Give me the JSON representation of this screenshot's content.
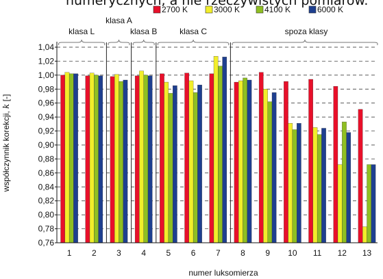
{
  "caption_fragment": "numerycznych, a nie rzeczywistych pomiarów.",
  "chart_data": {
    "type": "bar",
    "title": "",
    "xlabel": "numer luksomierza",
    "ylabel": "współczynnik korekcji, k [-]",
    "ylabel_main": "współczynnik korekcji,",
    "ylabel_var": "k",
    "ylabel_unit": "[-]",
    "ylim": [
      0.76,
      1.04
    ],
    "yticks": [
      "0,76",
      "0,78",
      "0,80",
      "0,82",
      "0,84",
      "0,86",
      "0,88",
      "0,90",
      "0,92",
      "0,94",
      "0,96",
      "0,98",
      "1,00",
      "1,02",
      "1,04"
    ],
    "grid": "horizontal dashed",
    "legend_position": "top",
    "categories": [
      "1",
      "2",
      "3",
      "4",
      "5",
      "6",
      "7",
      "8",
      "9",
      "10",
      "11",
      "12",
      "13"
    ],
    "series": [
      {
        "name": "2700 K",
        "color": "#e8102a",
        "values": [
          1.0,
          0.999,
          0.998,
          0.999,
          1.002,
          1.003,
          1.002,
          0.99,
          1.004,
          0.991,
          0.994,
          0.984,
          0.951
        ]
      },
      {
        "name": "3000 K",
        "color": "#f2ee2a",
        "values": [
          1.004,
          1.003,
          1.001,
          1.006,
          0.99,
          0.992,
          1.027,
          0.992,
          0.98,
          0.931,
          0.925,
          0.872,
          0.783
        ]
      },
      {
        "name": "4100 K",
        "color": "#8fbf22",
        "values": [
          1.002,
          1.0,
          0.991,
          1.0,
          0.974,
          0.975,
          1.013,
          0.996,
          0.962,
          0.922,
          0.915,
          0.933,
          0.872
        ]
      },
      {
        "name": "6000 K",
        "color": "#1e3f8f",
        "values": [
          1.002,
          0.999,
          0.993,
          0.999,
          0.985,
          0.986,
          1.026,
          0.993,
          0.975,
          0.931,
          0.924,
          0.918,
          0.872
        ]
      }
    ],
    "groups": [
      {
        "label": "klasa L",
        "from": "1",
        "to": "2"
      },
      {
        "label": "klasa A",
        "from": "3",
        "to": "3"
      },
      {
        "label": "klasa B",
        "from": "4",
        "to": "4"
      },
      {
        "label": "klasa C",
        "from": "5",
        "to": "7"
      },
      {
        "label": "spoza klasy",
        "from": "8",
        "to": "13"
      }
    ]
  }
}
